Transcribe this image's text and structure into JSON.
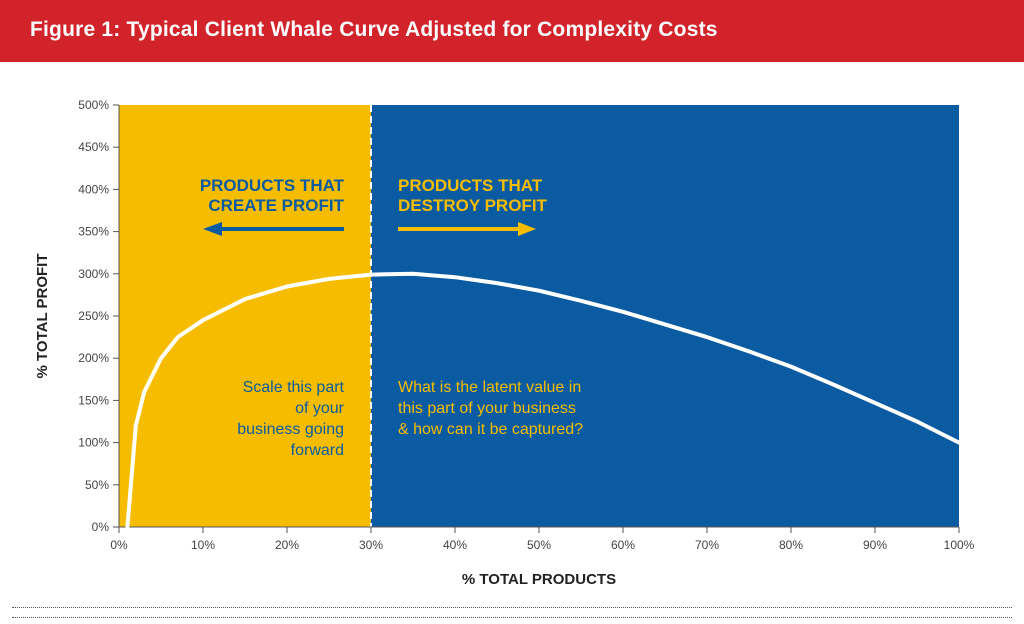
{
  "title": "Figure 1: Typical Client Whale Curve Adjusted for Complexity Costs",
  "colors": {
    "title_bg": "#d2232a",
    "left_region": "#f6bd00",
    "right_region": "#0a5ba1",
    "curve": "#ffffff",
    "left_text": "#0a5ba1",
    "right_text": "#f6bd00"
  },
  "chart_data": {
    "type": "area",
    "xlabel": "% TOTAL PRODUCTS",
    "ylabel": "% TOTAL PROFIT",
    "xlim": [
      0,
      100
    ],
    "ylim": [
      0,
      500
    ],
    "x_ticks": [
      "0%",
      "10%",
      "20%",
      "30%",
      "40%",
      "50%",
      "60%",
      "70%",
      "80%",
      "90%",
      "100%"
    ],
    "y_ticks": [
      "0%",
      "50%",
      "100%",
      "150%",
      "200%",
      "250%",
      "300%",
      "350%",
      "400%",
      "450%",
      "500%"
    ],
    "divider_x": 30,
    "grid": false,
    "regions": [
      {
        "x_range": [
          0,
          30
        ],
        "heading": [
          "PRODUCTS THAT",
          "CREATE PROFIT"
        ],
        "note": [
          "Scale this part",
          "of your",
          "business  going",
          "forward"
        ],
        "arrow": "left"
      },
      {
        "x_range": [
          30,
          100
        ],
        "heading": [
          "PRODUCTS THAT",
          "DESTROY PROFIT"
        ],
        "note": [
          "What is the latent value in",
          "this part of your business",
          "& how can it be captured?"
        ],
        "arrow": "right"
      }
    ],
    "series": [
      {
        "x": [
          1,
          2,
          3,
          5,
          7,
          10,
          15,
          20,
          25,
          30,
          35,
          40,
          45,
          50,
          55,
          60,
          65,
          70,
          75,
          80,
          85,
          90,
          95,
          100
        ],
        "y": [
          0,
          120,
          160,
          200,
          225,
          245,
          270,
          285,
          294,
          299,
          300,
          296,
          289,
          280,
          268,
          255,
          240,
          225,
          208,
          190,
          169,
          147,
          125,
          100
        ]
      }
    ]
  }
}
